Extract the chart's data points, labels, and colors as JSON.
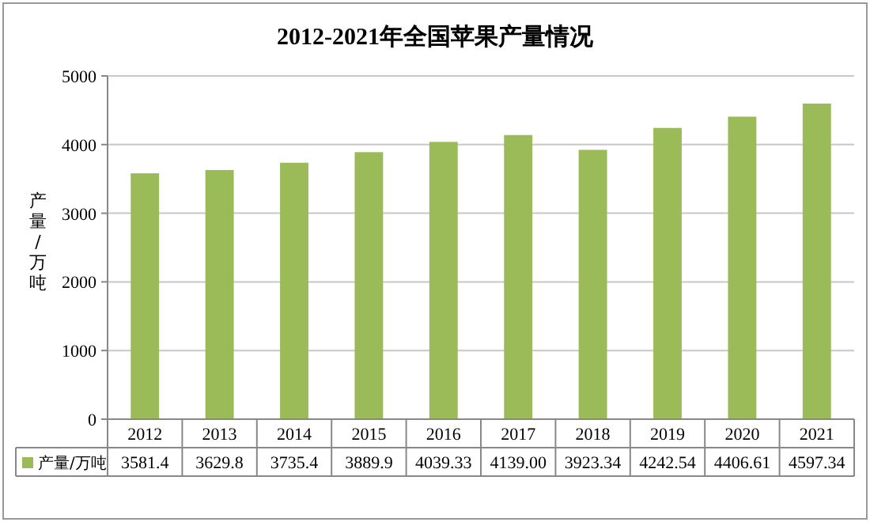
{
  "chart_data": {
    "type": "bar",
    "title": "2012-2021年全国苹果产量情况",
    "ylabel": "产量/万吨",
    "categories": [
      "2012",
      "2013",
      "2014",
      "2015",
      "2016",
      "2017",
      "2018",
      "2019",
      "2020",
      "2021"
    ],
    "series": [
      {
        "name": "产量/万吨",
        "color": "#9bbb59",
        "values": [
          3581.4,
          3629.8,
          3735.4,
          3889.9,
          4039.33,
          4139.0,
          3923.34,
          4242.54,
          4406.61,
          4597.34
        ],
        "value_labels": [
          "3581.4",
          "3629.8",
          "3735.4",
          "3889.9",
          "4039.33",
          "4139.00",
          "3923.34",
          "4242.54",
          "4406.61",
          "4597.34"
        ]
      }
    ],
    "ylim": [
      0,
      5000
    ],
    "yticks": [
      0,
      1000,
      2000,
      3000,
      4000,
      5000
    ],
    "grid": "y",
    "legend": "bottom"
  }
}
